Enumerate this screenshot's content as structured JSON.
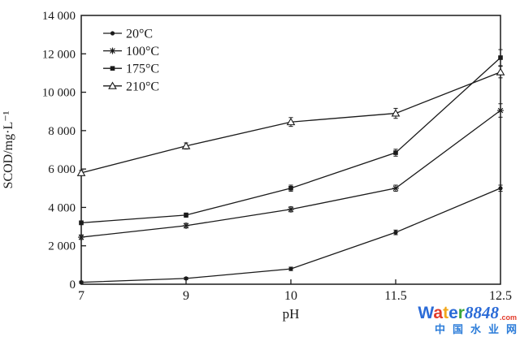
{
  "figure": {
    "background": "#ffffff",
    "ink": "#1a1a1a"
  },
  "chart_data": {
    "type": "line",
    "title": "",
    "xlabel": "pH",
    "ylabel": "SCOD/mg·L⁻¹",
    "x_scale": "categorical-evenly-spaced",
    "x_categories": [
      "7",
      "9",
      "10",
      "11.5",
      "12.5"
    ],
    "x_numeric": [
      7,
      9,
      10,
      11.5,
      12.5
    ],
    "ylim": [
      0,
      14000
    ],
    "ytick_step": 2000,
    "ytick_labels": [
      "0",
      "2 000",
      "4 000",
      "6 000",
      "8 000",
      "10 000",
      "12 000",
      "14 000"
    ],
    "grid": false,
    "frame": "full-box",
    "legend_position": "upper-left-inside",
    "error_bars": true,
    "series": [
      {
        "name": "20°C",
        "marker": "filled-circle",
        "color": "#1a1a1a",
        "values": [
          100,
          300,
          800,
          2700,
          5000
        ],
        "errors": [
          60,
          60,
          90,
          120,
          160
        ]
      },
      {
        "name": "100°C",
        "marker": "asterisk",
        "color": "#1a1a1a",
        "values": [
          2450,
          3050,
          3900,
          5000,
          9050
        ],
        "errors": [
          120,
          120,
          130,
          160,
          350
        ]
      },
      {
        "name": "175°C",
        "marker": "filled-square",
        "color": "#1a1a1a",
        "values": [
          3200,
          3600,
          5000,
          6850,
          11800
        ],
        "errors": [
          100,
          110,
          160,
          180,
          420
        ]
      },
      {
        "name": "210°C",
        "marker": "open-triangle",
        "color": "#1a1a1a",
        "values": [
          5800,
          7200,
          8450,
          8900,
          11050
        ],
        "errors": [
          130,
          160,
          230,
          260,
          300
        ]
      }
    ]
  },
  "watermark": {
    "brand_letters": [
      {
        "ch": "W",
        "color": "#2b6bd7"
      },
      {
        "ch": "a",
        "color": "#e23a2a"
      },
      {
        "ch": "t",
        "color": "#f2a71c"
      },
      {
        "ch": "e",
        "color": "#2b6bd7"
      },
      {
        "ch": "r",
        "color": "#3aa63c"
      }
    ],
    "number": "8848",
    "number_color": "#2b6bd7",
    "suffix": ".com",
    "suffix_color": "#e23a2a",
    "chinese": "中国水业网",
    "chinese_color": "#2b7cd9"
  }
}
